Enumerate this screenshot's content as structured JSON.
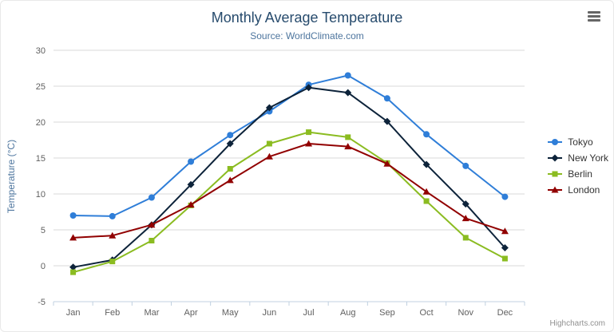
{
  "chart_data": {
    "type": "line",
    "title": "Monthly Average Temperature",
    "subtitle": "Source: WorldClimate.com",
    "categories": [
      "Jan",
      "Feb",
      "Mar",
      "Apr",
      "May",
      "Jun",
      "Jul",
      "Aug",
      "Sep",
      "Oct",
      "Nov",
      "Dec"
    ],
    "xlabel": "",
    "ylabel": "Temperature (°C)",
    "ylim": [
      -5,
      30
    ],
    "ytick_interval": 5,
    "grid": true,
    "legend_position": "right",
    "series": [
      {
        "name": "Tokyo",
        "color": "#2f7ed8",
        "marker": "circle",
        "values": [
          7.0,
          6.9,
          9.5,
          14.5,
          18.2,
          21.5,
          25.2,
          26.5,
          23.3,
          18.3,
          13.9,
          9.6
        ]
      },
      {
        "name": "New York",
        "color": "#0d233a",
        "marker": "diamond",
        "values": [
          -0.2,
          0.8,
          5.7,
          11.3,
          17.0,
          22.0,
          24.8,
          24.1,
          20.1,
          14.1,
          8.6,
          2.5
        ]
      },
      {
        "name": "Berlin",
        "color": "#8bbc21",
        "marker": "square",
        "values": [
          -0.9,
          0.6,
          3.5,
          8.4,
          13.5,
          17.0,
          18.6,
          17.9,
          14.3,
          9.0,
          3.9,
          1.0
        ]
      },
      {
        "name": "London",
        "color": "#910000",
        "marker": "triangle",
        "values": [
          3.9,
          4.2,
          5.7,
          8.5,
          11.9,
          15.2,
          17.0,
          16.6,
          14.2,
          10.3,
          6.6,
          4.8
        ]
      }
    ],
    "credits": "Highcharts.com",
    "colors": {
      "grid_line": "#d8d8d8",
      "axis_line": "#c0d0e0",
      "tick_label": "#606060",
      "title": "#274b6d",
      "subtitle": "#4d759e",
      "axis_title": "#4d759e"
    }
  }
}
